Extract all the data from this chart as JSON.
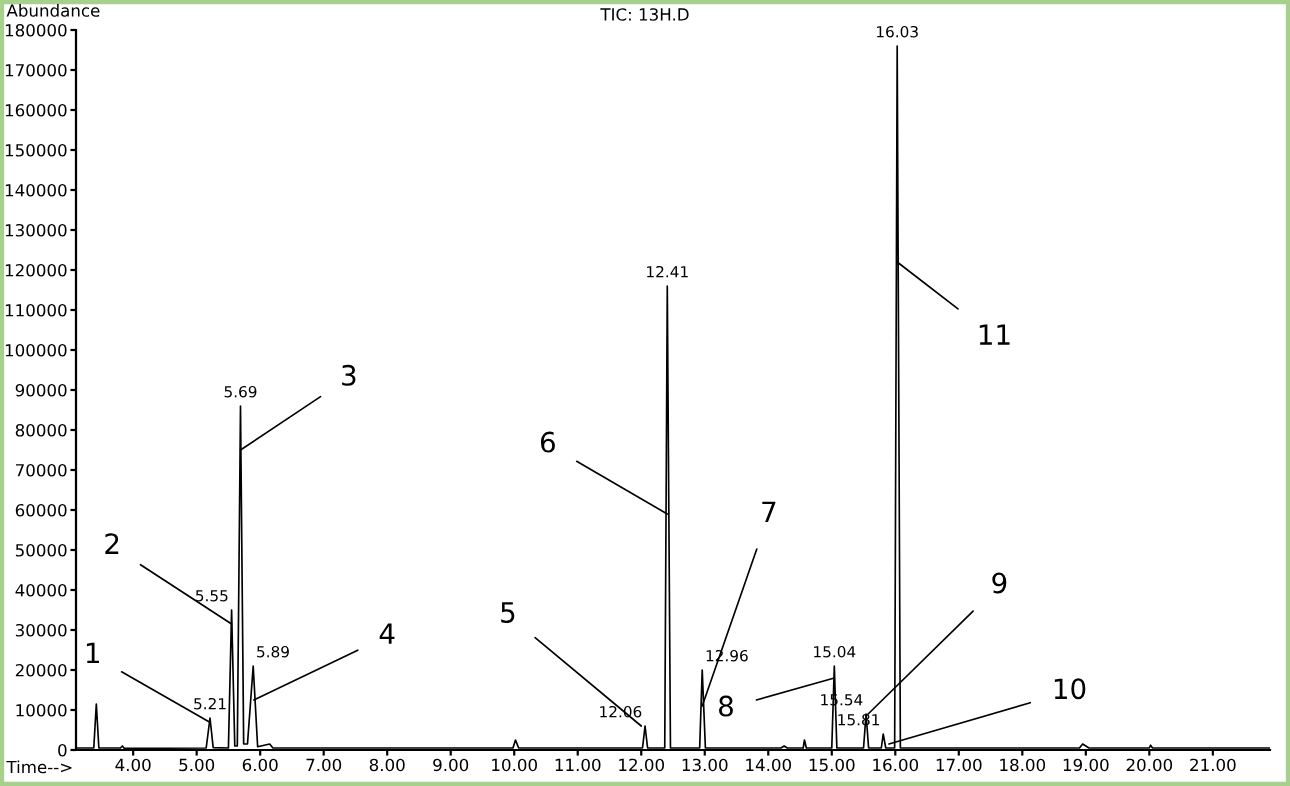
{
  "chart_data": {
    "type": "line",
    "title": "TIC: 13H.D",
    "xlabel": "Time-->",
    "ylabel": "Abundance",
    "xlim": [
      3.1,
      21.9
    ],
    "ylim": [
      0,
      180000
    ],
    "xticks": [
      {
        "value": 4,
        "label": "4.00"
      },
      {
        "value": 5,
        "label": "5.00"
      },
      {
        "value": 6,
        "label": "6.00"
      },
      {
        "value": 7,
        "label": "7.00"
      },
      {
        "value": 8,
        "label": "8.00"
      },
      {
        "value": 9,
        "label": "9.00"
      },
      {
        "value": 10,
        "label": "10.00"
      },
      {
        "value": 11,
        "label": "11.00"
      },
      {
        "value": 12,
        "label": "12.00"
      },
      {
        "value": 13,
        "label": "13.00"
      },
      {
        "value": 14,
        "label": "14.00"
      },
      {
        "value": 15,
        "label": "15.00"
      },
      {
        "value": 16,
        "label": "16.00"
      },
      {
        "value": 17,
        "label": "17.00"
      },
      {
        "value": 18,
        "label": "18.00"
      },
      {
        "value": 19,
        "label": "19.00"
      },
      {
        "value": 20,
        "label": "20.00"
      },
      {
        "value": 21,
        "label": "21.00"
      }
    ],
    "yticks": [
      0,
      10000,
      20000,
      30000,
      40000,
      50000,
      60000,
      70000,
      80000,
      90000,
      100000,
      110000,
      120000,
      130000,
      140000,
      150000,
      160000,
      170000,
      180000
    ],
    "grid": false,
    "legend": false,
    "marker": "none",
    "line_style": "solid",
    "series": [
      {
        "color": "#000000",
        "x": [
          3.1,
          3.38,
          3.42,
          3.46,
          3.8,
          3.83,
          3.86,
          5.15,
          5.21,
          5.26,
          5.5,
          5.55,
          5.6,
          5.64,
          5.69,
          5.74,
          5.8,
          5.89,
          5.96,
          6.15,
          6.2,
          9.98,
          10.02,
          10.07,
          12.02,
          12.06,
          12.1,
          12.37,
          12.41,
          12.46,
          12.92,
          12.96,
          13.01,
          14.2,
          14.25,
          14.3,
          14.55,
          14.57,
          14.6,
          15.0,
          15.04,
          15.08,
          15.5,
          15.54,
          15.58,
          15.78,
          15.81,
          15.85,
          15.99,
          16.03,
          16.08,
          18.9,
          18.95,
          19.05,
          20.0,
          20.02,
          20.05,
          21.9
        ],
        "values": [
          500,
          500,
          11500,
          500,
          500,
          1000,
          400,
          500,
          8000,
          600,
          500,
          35000,
          1000,
          1000,
          86000,
          1500,
          1500,
          21000,
          800,
          1500,
          500,
          500,
          2500,
          500,
          500,
          6000,
          500,
          500,
          116000,
          500,
          500,
          20000,
          500,
          500,
          1000,
          500,
          500,
          2500,
          500,
          500,
          21000,
          500,
          500,
          9000,
          500,
          500,
          4000,
          500,
          500,
          176000,
          500,
          500,
          1500,
          500,
          500,
          1200,
          500,
          500
        ]
      }
    ],
    "annotations": [
      {
        "text": "5.21",
        "x": 5.21,
        "y": 8000
      },
      {
        "text": "5.55",
        "x": 5.55,
        "y": 35000
      },
      {
        "text": "5.69",
        "x": 5.69,
        "y": 86000
      },
      {
        "text": "5.89",
        "x": 5.89,
        "y": 21000
      },
      {
        "text": "12.06",
        "x": 12.06,
        "y": 6000
      },
      {
        "text": "12.41",
        "x": 12.41,
        "y": 116000
      },
      {
        "text": "12.96",
        "x": 12.96,
        "y": 20000
      },
      {
        "text": "15.04",
        "x": 15.04,
        "y": 21000
      },
      {
        "text": "15.54",
        "x": 15.54,
        "y": 9000
      },
      {
        "text": "15.81",
        "x": 15.81,
        "y": 4000
      },
      {
        "text": "16.03",
        "x": 16.03,
        "y": 176000
      },
      {
        "text": "1",
        "x": 5.2,
        "y": 7000
      },
      {
        "text": "2",
        "x": 5.55,
        "y": 31500
      },
      {
        "text": "3",
        "x": 5.69,
        "y": 75000
      },
      {
        "text": "4",
        "x": 5.9,
        "y": 12500
      },
      {
        "text": "5",
        "x": 12.0,
        "y": 6000
      },
      {
        "text": "6",
        "x": 12.41,
        "y": 59000
      },
      {
        "text": "7",
        "x": 12.96,
        "y": 11000
      },
      {
        "text": "8",
        "x": 15.04,
        "y": 18000
      },
      {
        "text": "9",
        "x": 15.54,
        "y": 8500
      },
      {
        "text": "10",
        "x": 15.9,
        "y": 1500
      },
      {
        "text": "11",
        "x": 16.03,
        "y": 122000
      }
    ]
  }
}
